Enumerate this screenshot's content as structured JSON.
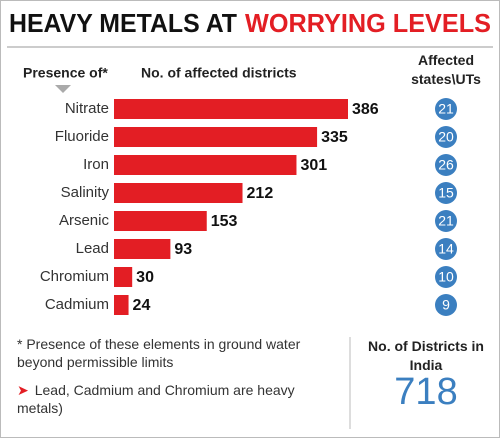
{
  "chart_data": {
    "type": "bar",
    "orientation": "horizontal",
    "title": "HEAVY METALS AT",
    "title_highlight": "WORRYING LEVELS",
    "category_label": "Presence of*",
    "value_label": "No. of affected districts",
    "categories": [
      "Nitrate",
      "Fluoride",
      "Iron",
      "Salinity",
      "Arsenic",
      "Lead",
      "Chromium",
      "Cadmium"
    ],
    "values": [
      386,
      335,
      301,
      212,
      153,
      93,
      30,
      24
    ],
    "color": "#e31e24",
    "states_label": "Affected states\\UTs",
    "states_values": [
      21,
      20,
      26,
      15,
      21,
      14,
      10,
      9
    ],
    "states_color": "#3b7fc0",
    "footnote": "* Presence of these elements in ground water beyond permissible limits",
    "note": "Lead, Cadmium and Chromium are heavy metals)",
    "total_label": "No. of Districts in India",
    "total": 718
  }
}
